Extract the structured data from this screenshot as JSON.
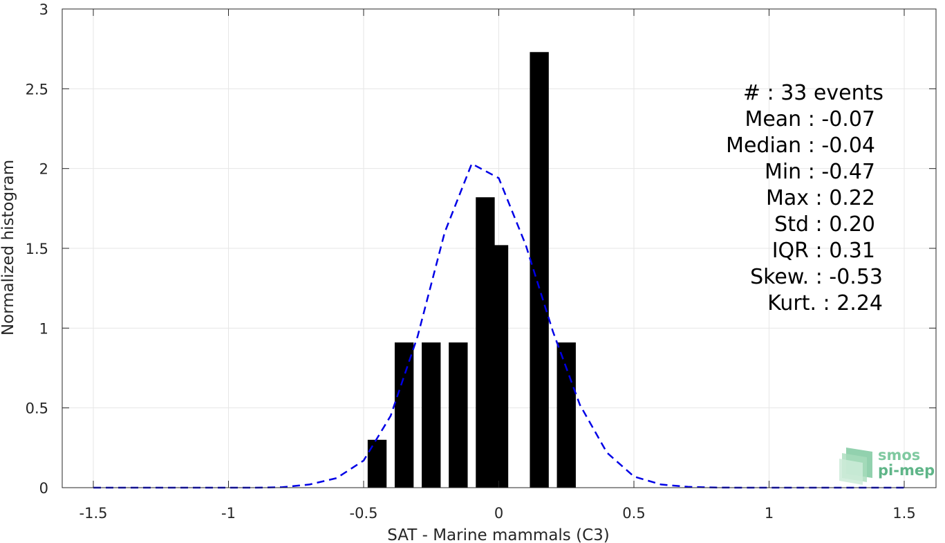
{
  "chart_data": {
    "type": "bar",
    "xlabel": "SAT - Marine mammals (C3)",
    "ylabel": "Normalized histogram",
    "xlim": [
      -1.5,
      1.5
    ],
    "ylim": [
      0,
      3
    ],
    "grid": true,
    "xticks": [
      -1.5,
      -1,
      -0.5,
      0,
      0.5,
      1,
      1.5
    ],
    "xtick_labels": [
      "-1.5",
      "-1",
      "-0.5",
      "0",
      "0.5",
      "1",
      "1.5"
    ],
    "yticks": [
      0,
      0.5,
      1,
      1.5,
      2,
      2.5,
      3
    ],
    "ytick_labels": [
      "0",
      "0.5",
      "1",
      "1.5",
      "2",
      "2.5",
      "3"
    ],
    "bar_width": 0.07,
    "bars": [
      {
        "x": -0.45,
        "value": 0.3
      },
      {
        "x": -0.35,
        "value": 0.91
      },
      {
        "x": -0.25,
        "value": 0.91
      },
      {
        "x": -0.15,
        "value": 0.91
      },
      {
        "x": -0.05,
        "value": 1.82
      },
      {
        "x": 0.0,
        "value": 1.52
      },
      {
        "x": 0.15,
        "value": 2.73
      },
      {
        "x": 0.25,
        "value": 0.91
      }
    ],
    "bar_color": "#000000",
    "fit_curve": {
      "style": "dashed",
      "color": "#0000e6",
      "x": [
        -1.5,
        -1.4,
        -1.3,
        -1.2,
        -1.1,
        -1.0,
        -0.9,
        -0.8,
        -0.7,
        -0.6,
        -0.5,
        -0.4,
        -0.3,
        -0.2,
        -0.1,
        0.0,
        0.1,
        0.2,
        0.3,
        0.4,
        0.5,
        0.6,
        0.7,
        0.8,
        0.9,
        1.0,
        1.1,
        1.2,
        1.3,
        1.4,
        1.5
      ],
      "y": [
        0,
        0,
        0,
        0,
        0,
        0,
        0,
        0.003,
        0.02,
        0.06,
        0.17,
        0.45,
        0.95,
        1.6,
        2.03,
        1.94,
        1.52,
        0.98,
        0.52,
        0.22,
        0.07,
        0.02,
        0.005,
        0.001,
        0,
        0,
        0,
        0,
        0,
        0,
        0
      ]
    },
    "annotations": [
      "#  : 33 events",
      "Mean : -0.07",
      "Median : -0.04",
      "Min : -0.47",
      "Max : 0.22",
      "Std : 0.20",
      "IQR : 0.31",
      "Skew. : -0.53",
      "Kurt. : 2.24"
    ]
  },
  "logo": {
    "line1": "smos",
    "line2": "pi-mep",
    "colors": [
      "#7fc9a0",
      "#a8dcbc",
      "#5fb588"
    ]
  }
}
